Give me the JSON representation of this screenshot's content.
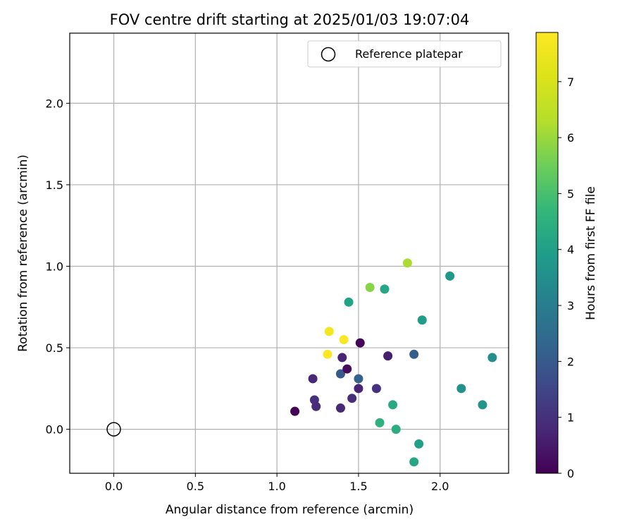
{
  "chart_data": {
    "type": "scatter",
    "title": "FOV centre drift starting at 2025/01/03 19:07:04",
    "xlabel": "Angular distance from reference (arcmin)",
    "ylabel": "Rotation from reference (arcmin)",
    "xlim": [
      -0.27,
      2.42
    ],
    "ylim": [
      -0.27,
      2.43
    ],
    "xticks": [
      "0.0",
      "0.5",
      "1.0",
      "1.5",
      "2.0"
    ],
    "yticks": [
      "0.0",
      "0.5",
      "1.0",
      "1.5",
      "2.0"
    ],
    "grid": true,
    "legend": {
      "location": "top-right",
      "entries": [
        "Reference platepar"
      ]
    },
    "reference_point": {
      "x": 0.0,
      "y": 0.0,
      "label": "Reference platepar"
    },
    "colorbar": {
      "label": "Hours from first FF file",
      "colormap": "viridis",
      "range": [
        0,
        7.88
      ],
      "ticks": [
        "0",
        "1",
        "2",
        "3",
        "4",
        "5",
        "6",
        "7"
      ]
    },
    "points": [
      {
        "x": 1.11,
        "y": 0.11,
        "hours": 0.05
      },
      {
        "x": 1.22,
        "y": 0.31,
        "hours": 0.8
      },
      {
        "x": 1.23,
        "y": 0.18,
        "hours": 1.0
      },
      {
        "x": 1.24,
        "y": 0.14,
        "hours": 0.9
      },
      {
        "x": 1.39,
        "y": 0.34,
        "hours": 2.0
      },
      {
        "x": 1.39,
        "y": 0.13,
        "hours": 0.8
      },
      {
        "x": 1.4,
        "y": 0.44,
        "hours": 0.7
      },
      {
        "x": 1.43,
        "y": 0.37,
        "hours": 0.2
      },
      {
        "x": 1.44,
        "y": 0.78,
        "hours": 4.1
      },
      {
        "x": 1.46,
        "y": 0.19,
        "hours": 0.9
      },
      {
        "x": 1.5,
        "y": 0.31,
        "hours": 2.2
      },
      {
        "x": 1.5,
        "y": 0.25,
        "hours": 0.7
      },
      {
        "x": 1.51,
        "y": 0.53,
        "hours": 0.1
      },
      {
        "x": 1.57,
        "y": 0.87,
        "hours": 5.8
      },
      {
        "x": 1.61,
        "y": 0.25,
        "hours": 1.0
      },
      {
        "x": 1.63,
        "y": 0.04,
        "hours": 4.5
      },
      {
        "x": 1.66,
        "y": 0.86,
        "hours": 4.2
      },
      {
        "x": 1.68,
        "y": 0.45,
        "hours": 0.6
      },
      {
        "x": 1.71,
        "y": 0.15,
        "hours": 4.3
      },
      {
        "x": 1.73,
        "y": 0.0,
        "hours": 4.4
      },
      {
        "x": 1.8,
        "y": 1.02,
        "hours": 6.2
      },
      {
        "x": 1.84,
        "y": 0.46,
        "hours": 2.1
      },
      {
        "x": 1.84,
        "y": -0.2,
        "hours": 4.2
      },
      {
        "x": 1.87,
        "y": -0.09,
        "hours": 4.0
      },
      {
        "x": 1.89,
        "y": 0.67,
        "hours": 3.9
      },
      {
        "x": 2.06,
        "y": 0.94,
        "hours": 3.8
      },
      {
        "x": 2.13,
        "y": 0.25,
        "hours": 3.6
      },
      {
        "x": 2.26,
        "y": 0.15,
        "hours": 3.7
      },
      {
        "x": 2.32,
        "y": 0.44,
        "hours": 3.5
      },
      {
        "x": 1.31,
        "y": 0.46,
        "hours": 7.85
      },
      {
        "x": 1.32,
        "y": 0.6,
        "hours": 7.7
      },
      {
        "x": 1.41,
        "y": 0.55,
        "hours": 7.8
      }
    ]
  }
}
